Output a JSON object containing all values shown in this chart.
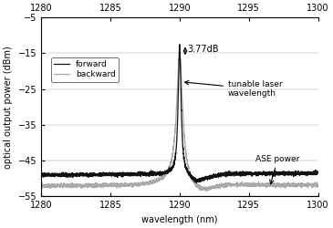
{
  "title": "",
  "xlabel": "wavelength (nm)",
  "ylabel": "optical output power (dBm)",
  "xlim": [
    1280,
    1300
  ],
  "ylim": [
    -55,
    -5
  ],
  "xticks": [
    1280,
    1285,
    1290,
    1295,
    1300
  ],
  "yticks": [
    -55,
    -45,
    -35,
    -25,
    -15,
    -5
  ],
  "peak_wavelength": 1290.0,
  "peak_forward": -12.5,
  "peak_backward": -16.27,
  "baseline_forward": -49.0,
  "baseline_backward": -52.0,
  "forward_color": "#111111",
  "backward_color": "#aaaaaa",
  "annotation_3db": "3.77dB",
  "annotation_laser": "tunable laser\nwavelength",
  "annotation_ase": "ASE power",
  "figsize": [
    3.65,
    2.5
  ],
  "dpi": 100
}
